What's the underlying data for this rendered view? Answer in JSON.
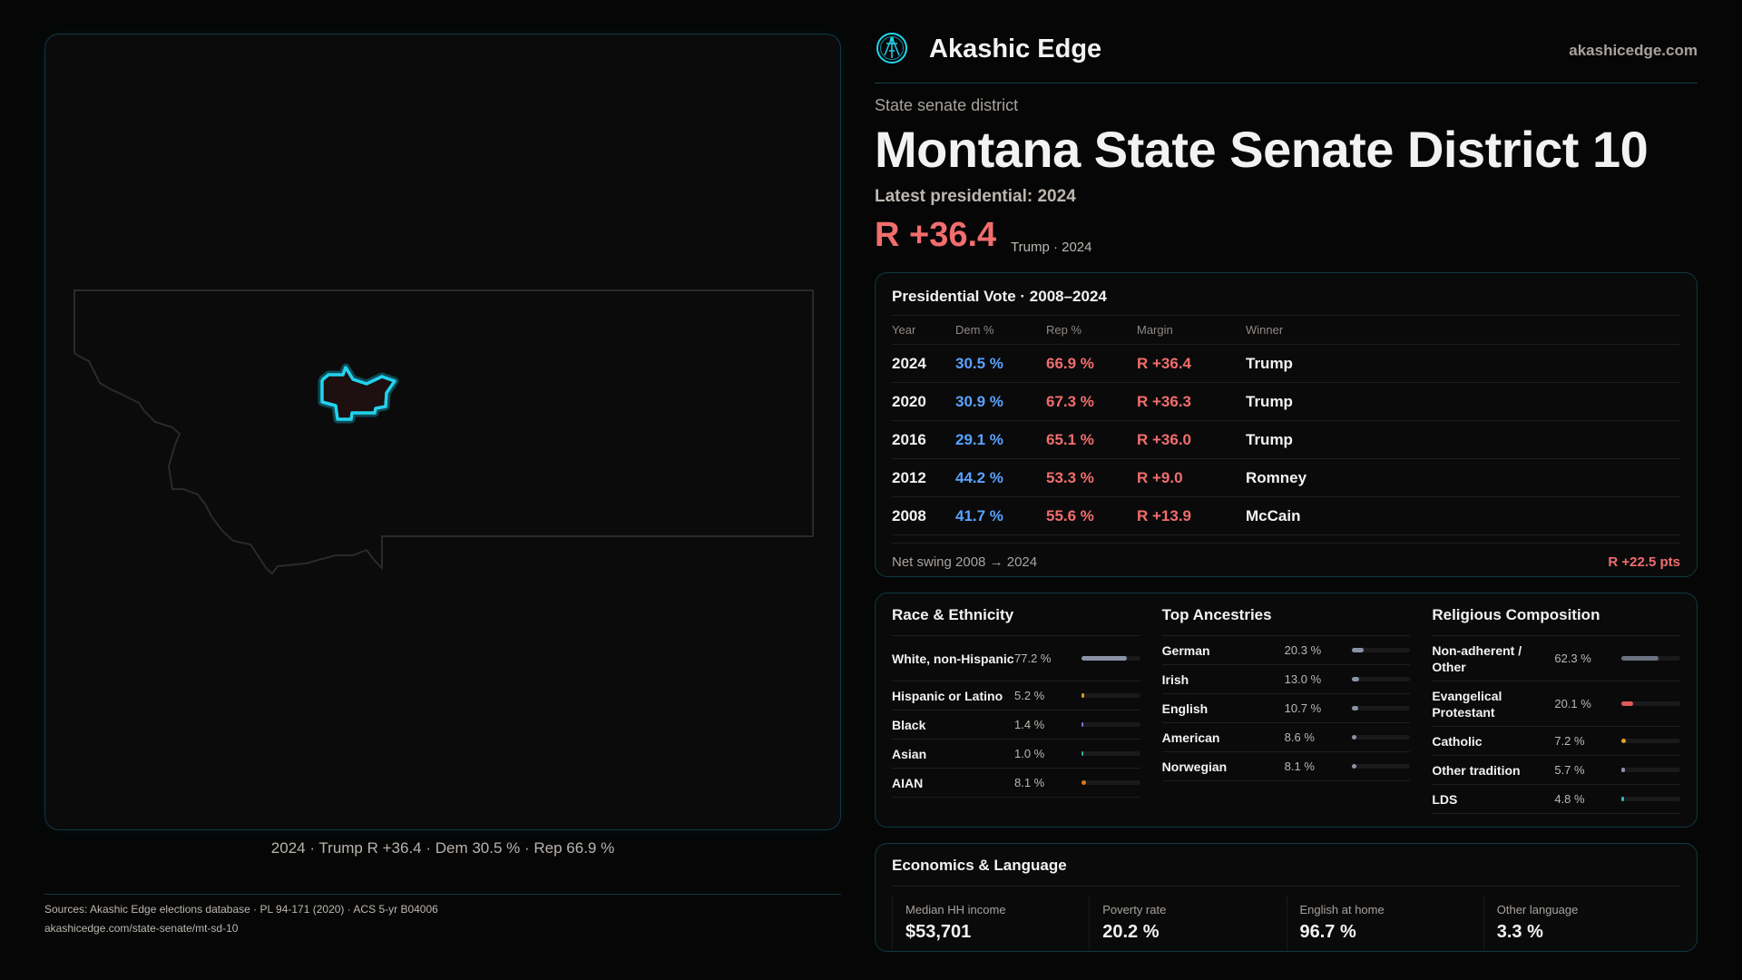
{
  "brand": {
    "name": "Akashic Edge",
    "site": "akashicedge.com",
    "logo_icon": "akashic-logo-icon",
    "accent": "#22d3ee"
  },
  "district": {
    "kind": "State senate district",
    "title": "Montana State Senate District 10",
    "latest_label": "Latest presidential: 2024",
    "margin": "R +36.4",
    "margin_sub": "Trump · 2024"
  },
  "map": {
    "caption": "2024 · Trump R +36.4 · Dem 30.5 % · Rep 66.9 %",
    "highlight_color": "#22d3ee"
  },
  "presidential": {
    "title": "Presidential Vote · 2008–2024",
    "columns": [
      "Year",
      "Dem %",
      "Rep %",
      "Margin",
      "Winner"
    ],
    "rows": [
      [
        "2024",
        "30.5 %",
        "66.9 %",
        "R +36.4",
        "Trump"
      ],
      [
        "2020",
        "30.9 %",
        "67.3 %",
        "R +36.3",
        "Trump"
      ],
      [
        "2016",
        "29.1 %",
        "65.1 %",
        "R +36.0",
        "Trump"
      ],
      [
        "2012",
        "44.2 %",
        "53.3 %",
        "R +9.0",
        "Romney"
      ],
      [
        "2008",
        "41.7 %",
        "55.6 %",
        "R +13.9",
        "McCain"
      ]
    ],
    "swing_label": "Net swing 2008 → 2024",
    "swing_value": "R +22.5 pts",
    "colors": {
      "dem": "#5aa2ff",
      "rep": "#f26d6d"
    }
  },
  "demographics": [
    {
      "title": "Race & Ethnicity",
      "items": [
        {
          "label": "White, non-Hispanic",
          "value": "77.2 %",
          "pct": 77.2,
          "color": "#8a93a6"
        },
        {
          "label": "Hispanic or Latino",
          "value": "5.2 %",
          "pct": 5.2,
          "color": "#d99a1e"
        },
        {
          "label": "Black",
          "value": "1.4 %",
          "pct": 1.4,
          "color": "#7c6fd9"
        },
        {
          "label": "Asian",
          "value": "1.0 %",
          "pct": 1.0,
          "color": "#2bb39a"
        },
        {
          "label": "AIAN",
          "value": "8.1 %",
          "pct": 8.1,
          "color": "#d9791e"
        }
      ]
    },
    {
      "title": "Top Ancestries",
      "items": [
        {
          "label": "German",
          "value": "20.3 %",
          "pct": 20.3,
          "color": "#8a93a6"
        },
        {
          "label": "Irish",
          "value": "13.0 %",
          "pct": 13.0,
          "color": "#8a93a6"
        },
        {
          "label": "English",
          "value": "10.7 %",
          "pct": 10.7,
          "color": "#8a93a6"
        },
        {
          "label": "American",
          "value": "8.6 %",
          "pct": 8.6,
          "color": "#8a93a6"
        },
        {
          "label": "Norwegian",
          "value": "8.1 %",
          "pct": 8.1,
          "color": "#8a93a6"
        }
      ]
    },
    {
      "title": "Religious Composition",
      "items": [
        {
          "label": "Non-adherent / Other",
          "value": "62.3 %",
          "pct": 62.3,
          "color": "#6b7280"
        },
        {
          "label": "Evangelical Protestant",
          "value": "20.1 %",
          "pct": 20.1,
          "color": "#e05a5a"
        },
        {
          "label": "Catholic",
          "value": "7.2 %",
          "pct": 7.2,
          "color": "#e0a21e"
        },
        {
          "label": "Other tradition",
          "value": "5.7 %",
          "pct": 5.7,
          "color": "#8a93a6"
        },
        {
          "label": "LDS",
          "value": "4.8 %",
          "pct": 4.8,
          "color": "#2bc0b0"
        }
      ]
    }
  ],
  "economics": {
    "title": "Economics & Language",
    "stats": [
      {
        "label": "Median HH income",
        "value": "$53,701"
      },
      {
        "label": "Poverty rate",
        "value": "20.2 %"
      },
      {
        "label": "English at home",
        "value": "96.7 %"
      },
      {
        "label": "Other language",
        "value": "3.3 %"
      }
    ]
  },
  "footer": {
    "sources": "Sources: Akashic Edge elections database · PL 94-171 (2020) · ACS 5-yr B04006",
    "url": "akashicedge.com/state-senate/mt-sd-10"
  }
}
